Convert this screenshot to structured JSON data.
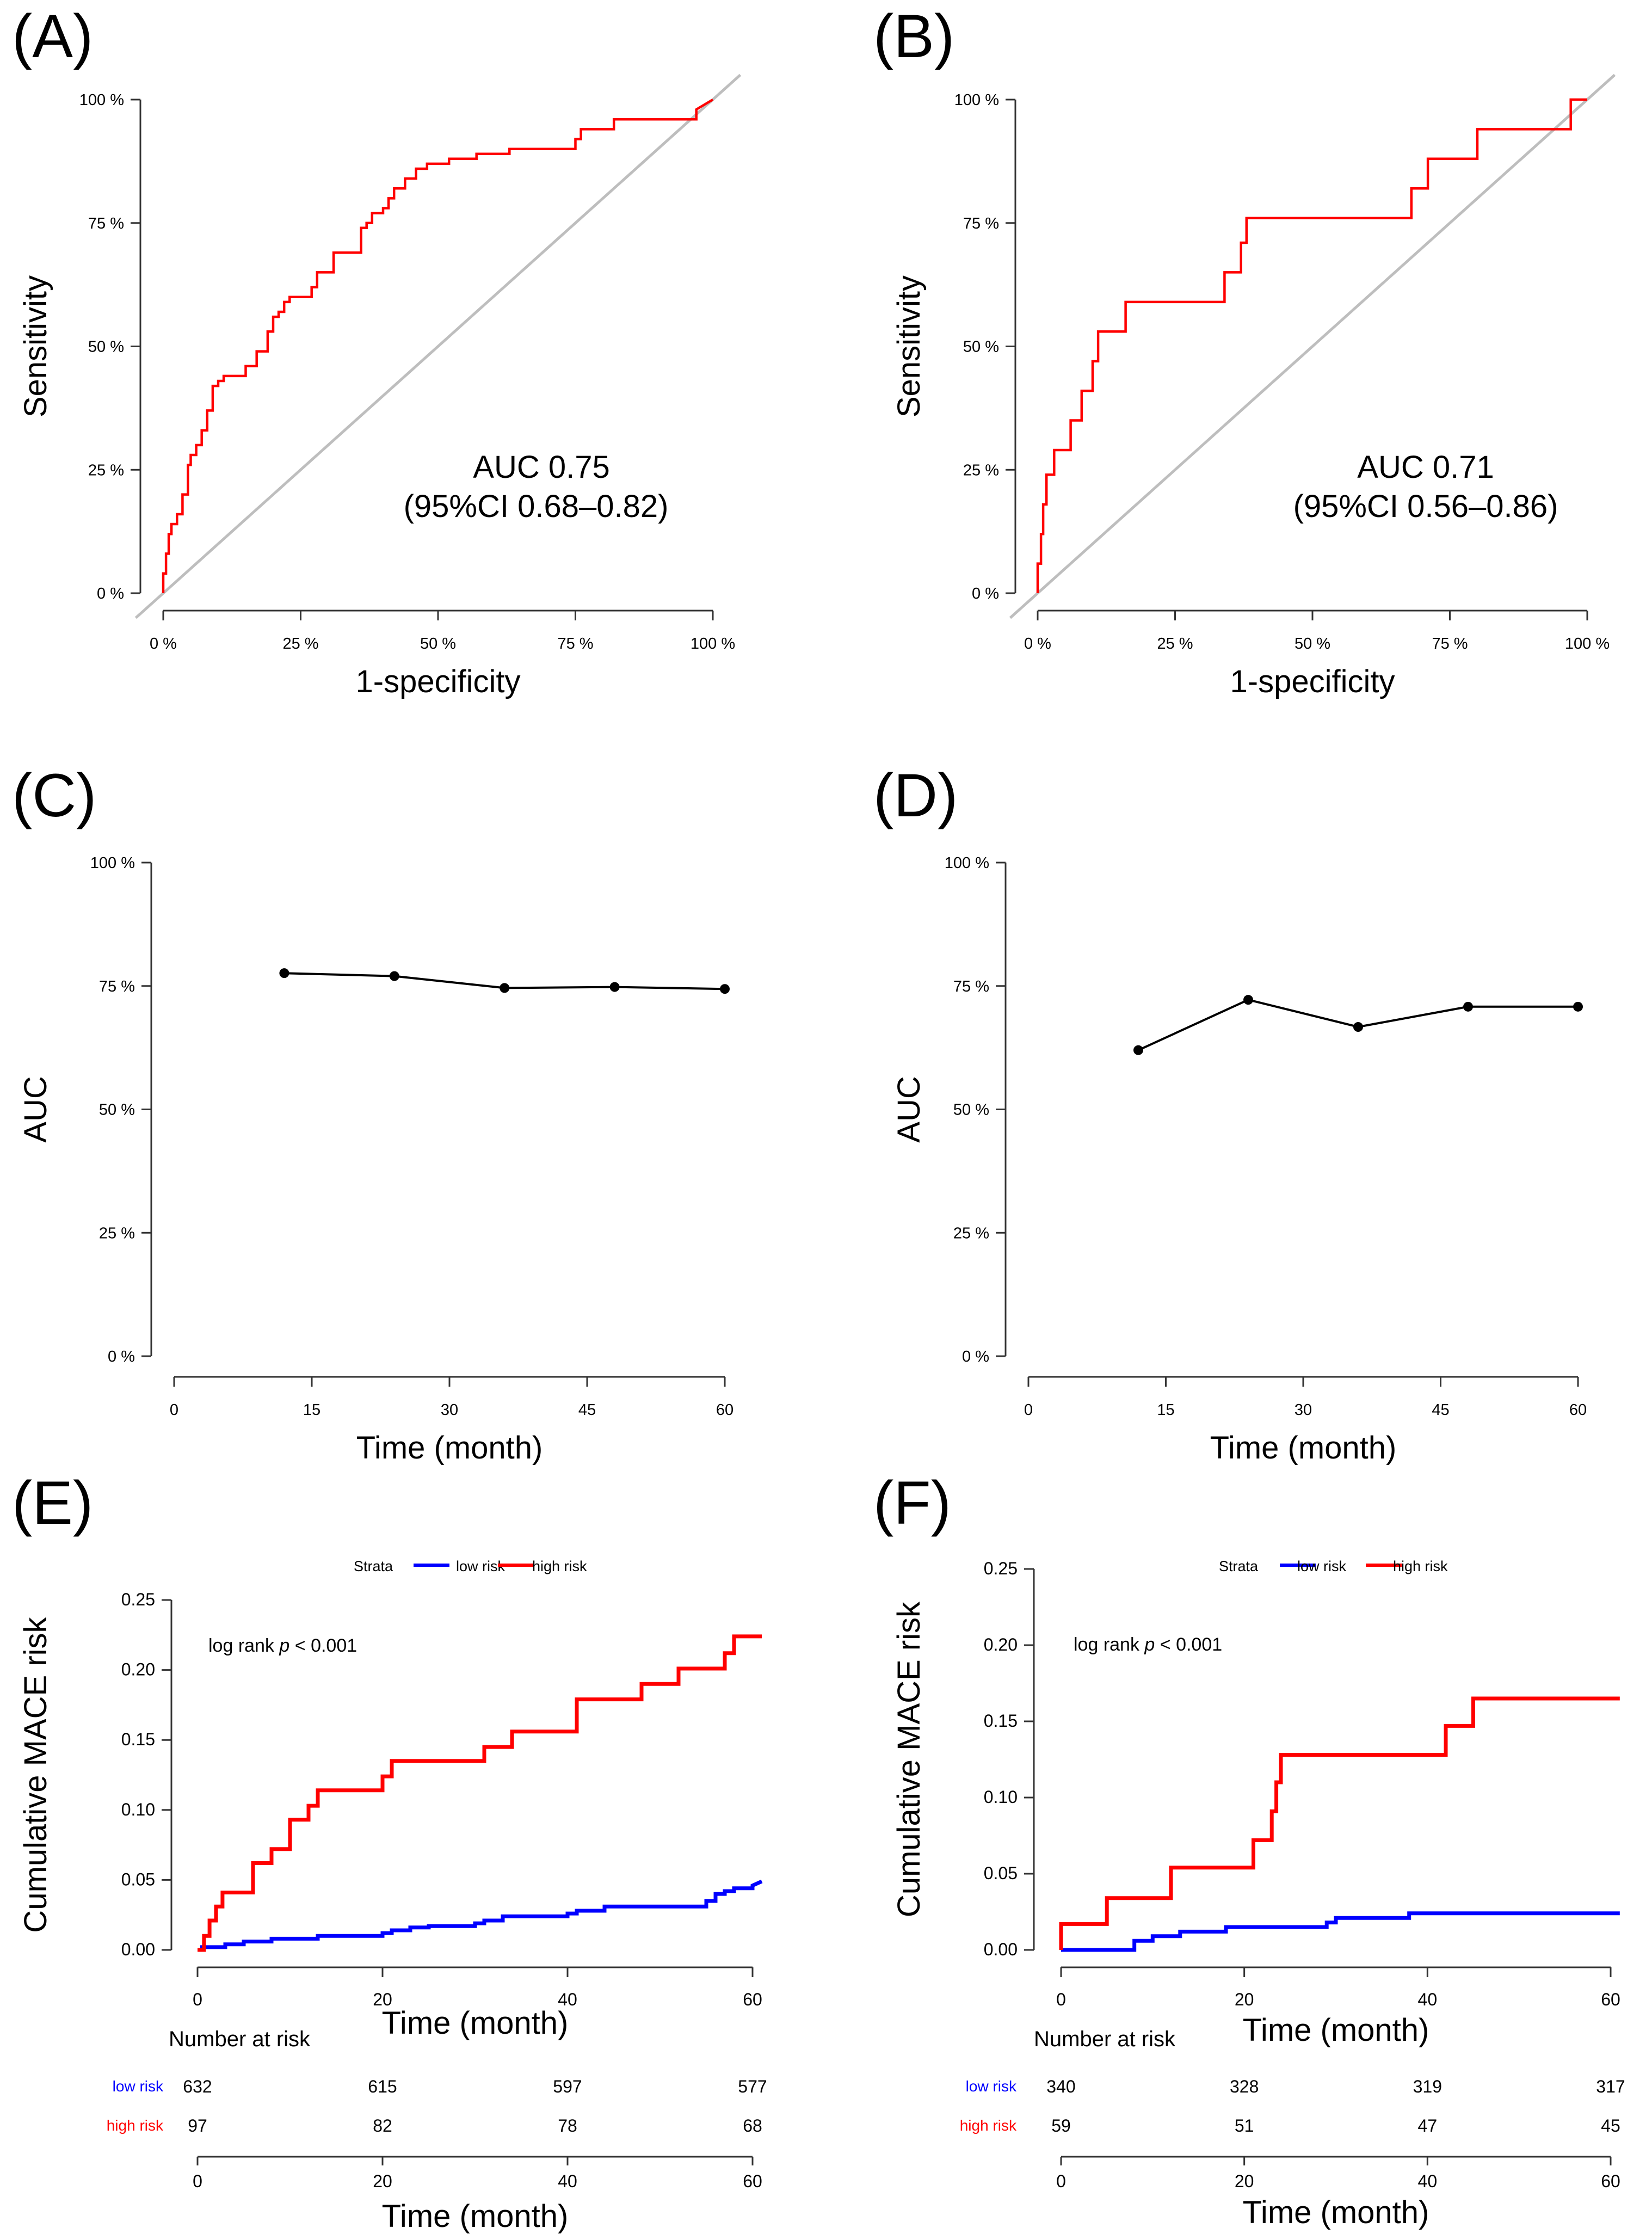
{
  "figure": {
    "panel_labels": [
      "(A)",
      "(B)",
      "(C)",
      "(D)",
      "(E)",
      "(F)"
    ]
  },
  "colors": {
    "roc": "#ff0000",
    "diag": "#bebebe",
    "axis": "#333333",
    "text": "#000000",
    "low": "#0000ff",
    "high": "#ff0000"
  },
  "chart_data": [
    {
      "panel": "(A)",
      "type": "line",
      "subtype": "roc",
      "xlabel": "1-specificity",
      "ylabel": "Sensitivity",
      "xlim": [
        0,
        100
      ],
      "ylim": [
        0,
        100
      ],
      "xticks": [
        "0 %",
        "25 %",
        "50 %",
        "75 %",
        "100 %"
      ],
      "xtick_values": [
        0,
        25,
        50,
        75,
        100
      ],
      "yticks": [
        "0 %",
        "25 %",
        "50 %",
        "75 %",
        "100 %"
      ],
      "ytick_values": [
        0,
        25,
        50,
        75,
        100
      ],
      "annotation": [
        "AUC 0.75",
        "(95%CI 0.68–0.82)"
      ],
      "series": [
        {
          "name": "ROC",
          "color": "#ff0000",
          "x": [
            0,
            0,
            0.5,
            0.5,
            1,
            1,
            1.5,
            1.5,
            2.5,
            2.5,
            3.5,
            3.5,
            4.5,
            4.5,
            5,
            5,
            6,
            6,
            7,
            7,
            8,
            8,
            9,
            9,
            10,
            10,
            11,
            11,
            15,
            15,
            17,
            17,
            19,
            19,
            20,
            20,
            21,
            21,
            22,
            22,
            23,
            23,
            27,
            27,
            28,
            28,
            31,
            31,
            36,
            36,
            37,
            37,
            38,
            38,
            40,
            40,
            41,
            41,
            42,
            42,
            44,
            44,
            46,
            46,
            48,
            48,
            52,
            52,
            57,
            57,
            63,
            63,
            75,
            75,
            76,
            76,
            82,
            82,
            97,
            97,
            100
          ],
          "y": [
            0,
            4,
            4,
            8,
            8,
            12,
            12,
            14,
            14,
            16,
            16,
            20,
            20,
            26,
            26,
            28,
            28,
            30,
            30,
            33,
            33,
            37,
            37,
            42,
            42,
            43,
            43,
            44,
            44,
            46,
            46,
            49,
            49,
            53,
            53,
            56,
            56,
            57,
            57,
            59,
            59,
            60,
            60,
            62,
            62,
            65,
            65,
            69,
            69,
            74,
            74,
            75,
            75,
            77,
            77,
            78,
            78,
            80,
            80,
            82,
            82,
            84,
            84,
            86,
            86,
            87,
            87,
            88,
            88,
            89,
            89,
            90,
            90,
            92,
            92,
            94,
            94,
            96,
            96,
            98,
            100
          ]
        }
      ]
    },
    {
      "panel": "(B)",
      "type": "line",
      "subtype": "roc",
      "xlabel": "1-specificity",
      "ylabel": "Sensitivity",
      "xlim": [
        0,
        100
      ],
      "ylim": [
        0,
        100
      ],
      "xticks": [
        "0 %",
        "25 %",
        "50 %",
        "75 %",
        "100 %"
      ],
      "xtick_values": [
        0,
        25,
        50,
        75,
        100
      ],
      "yticks": [
        "0 %",
        "25 %",
        "50 %",
        "75 %",
        "100 %"
      ],
      "ytick_values": [
        0,
        25,
        50,
        75,
        100
      ],
      "annotation": [
        "AUC 0.71",
        "(95%CI 0.56–0.86)"
      ],
      "series": [
        {
          "name": "ROC",
          "color": "#ff0000",
          "x": [
            0,
            0,
            0.6,
            0.6,
            1,
            1,
            1.6,
            1.6,
            3,
            3,
            6,
            6,
            8,
            8,
            10,
            10,
            11,
            11,
            12,
            12,
            16,
            16,
            34,
            34,
            37,
            37,
            38,
            38,
            68,
            68,
            71,
            71,
            80,
            80,
            97,
            97,
            100
          ],
          "y": [
            0,
            6,
            6,
            12,
            12,
            18,
            18,
            24,
            24,
            29,
            29,
            35,
            35,
            41,
            41,
            47,
            47,
            53,
            53,
            53,
            53,
            59,
            59,
            65,
            65,
            71,
            71,
            76,
            76,
            82,
            82,
            88,
            88,
            94,
            94,
            100,
            100
          ]
        }
      ]
    },
    {
      "panel": "(C)",
      "type": "line",
      "xlabel": "Time (month)",
      "ylabel": "AUC",
      "xlim": [
        0,
        60
      ],
      "ylim": [
        0,
        100
      ],
      "xticks": [
        "0",
        "15",
        "30",
        "45",
        "60"
      ],
      "xtick_values": [
        0,
        15,
        30,
        45,
        60
      ],
      "yticks": [
        "0 %",
        "25 %",
        "50 %",
        "75 %",
        "100 %"
      ],
      "ytick_values": [
        0,
        25,
        50,
        75,
        100
      ],
      "series": [
        {
          "name": "AUC",
          "color": "#000000",
          "x": [
            12,
            24,
            36,
            48,
            60
          ],
          "y": [
            77.6,
            77.0,
            74.6,
            74.8,
            74.4
          ]
        }
      ]
    },
    {
      "panel": "(D)",
      "type": "line",
      "xlabel": "Time (month)",
      "ylabel": "AUC",
      "xlim": [
        0,
        60
      ],
      "ylim": [
        0,
        100
      ],
      "xticks": [
        "0",
        "15",
        "30",
        "45",
        "60"
      ],
      "xtick_values": [
        0,
        15,
        30,
        45,
        60
      ],
      "yticks": [
        "0 %",
        "25 %",
        "50 %",
        "75 %",
        "100 %"
      ],
      "ytick_values": [
        0,
        25,
        50,
        75,
        100
      ],
      "series": [
        {
          "name": "AUC",
          "color": "#000000",
          "x": [
            12,
            24,
            36,
            48,
            60
          ],
          "y": [
            62.0,
            72.2,
            66.7,
            70.8,
            70.8
          ]
        }
      ]
    },
    {
      "panel": "(E)",
      "type": "line",
      "subtype": "cumulative-incidence",
      "xlabel": "Time (month)",
      "ylabel": "Cumulative MACE risk",
      "xlim": [
        0,
        60
      ],
      "ylim": [
        0,
        0.25
      ],
      "xticks": [
        "0",
        "20",
        "40",
        "60"
      ],
      "xtick_values": [
        0,
        20,
        40,
        60
      ],
      "yticks": [
        "0.00",
        "0.05",
        "0.10",
        "0.15",
        "0.20",
        "0.25"
      ],
      "ytick_values": [
        0,
        0.05,
        0.1,
        0.15,
        0.2,
        0.25
      ],
      "legend": {
        "title": "Strata",
        "entries": [
          "low risk",
          "high risk"
        ],
        "position": "top"
      },
      "annotation": {
        "prefix": "log rank ",
        "italic": "p",
        "suffix": " < 0.001"
      },
      "series": [
        {
          "name": "low risk",
          "color": "#0000ff",
          "x": [
            0,
            0.5,
            0.5,
            3,
            3,
            5,
            5,
            8,
            8,
            13,
            13,
            20,
            20,
            21,
            21,
            23,
            23,
            25,
            25,
            30,
            30,
            31,
            31,
            33,
            33,
            40,
            40,
            41,
            41,
            44,
            44,
            55,
            55,
            56,
            56,
            57,
            57,
            58,
            58,
            60,
            60,
            61
          ],
          "y": [
            0,
            0,
            0.002,
            0.002,
            0.004,
            0.004,
            0.006,
            0.006,
            0.008,
            0.008,
            0.01,
            0.01,
            0.012,
            0.012,
            0.014,
            0.014,
            0.016,
            0.016,
            0.017,
            0.017,
            0.019,
            0.019,
            0.021,
            0.021,
            0.024,
            0.024,
            0.026,
            0.026,
            0.028,
            0.028,
            0.031,
            0.031,
            0.035,
            0.035,
            0.04,
            0.04,
            0.042,
            0.042,
            0.044,
            0.044,
            0.046,
            0.049
          ]
        },
        {
          "name": "high risk",
          "color": "#ff0000",
          "x": [
            0,
            0.7,
            0.7,
            1.3,
            1.3,
            2,
            2,
            2.7,
            2.7,
            3,
            3,
            6,
            6,
            8,
            8,
            10,
            10,
            12,
            12,
            13,
            13,
            20,
            20,
            21,
            21,
            31,
            31,
            34,
            34,
            41,
            41,
            48,
            48,
            52,
            52,
            57,
            57,
            58,
            58,
            61
          ],
          "y": [
            0,
            0,
            0.01,
            0.01,
            0.021,
            0.021,
            0.031,
            0.031,
            0.041,
            0.041,
            0.041,
            0.041,
            0.062,
            0.062,
            0.072,
            0.072,
            0.093,
            0.093,
            0.103,
            0.103,
            0.114,
            0.114,
            0.124,
            0.124,
            0.135,
            0.135,
            0.145,
            0.145,
            0.156,
            0.156,
            0.179,
            0.179,
            0.19,
            0.19,
            0.201,
            0.201,
            0.212,
            0.212,
            0.224,
            0.224
          ]
        }
      ]
    },
    {
      "panel": "(F)",
      "type": "line",
      "subtype": "cumulative-incidence",
      "xlabel": "Time (month)",
      "ylabel": "Cumulative MACE risk",
      "xlim": [
        0,
        60
      ],
      "ylim": [
        0,
        0.25
      ],
      "xticks": [
        "0",
        "20",
        "40",
        "60"
      ],
      "xtick_values": [
        0,
        20,
        40,
        60
      ],
      "yticks": [
        "0.00",
        "0.05",
        "0.10",
        "0.15",
        "0.20",
        "0.25"
      ],
      "ytick_values": [
        0,
        0.05,
        0.1,
        0.15,
        0.2,
        0.25
      ],
      "legend": {
        "title": "Strata",
        "entries": [
          "low risk",
          "high risk"
        ],
        "position": "top"
      },
      "annotation": {
        "prefix": "log rank ",
        "italic": "p",
        "suffix": " < 0.001"
      },
      "series": [
        {
          "name": "low risk",
          "color": "#0000ff",
          "x": [
            0,
            8,
            8,
            10,
            10,
            13,
            13,
            18,
            18,
            29,
            29,
            30,
            30,
            38,
            38,
            61
          ],
          "y": [
            0,
            0,
            0.006,
            0.006,
            0.009,
            0.009,
            0.012,
            0.012,
            0.015,
            0.015,
            0.018,
            0.018,
            0.021,
            0.021,
            0.024,
            0.024
          ]
        },
        {
          "name": "high risk",
          "color": "#ff0000",
          "x": [
            0,
            0,
            5,
            5,
            12,
            12,
            21,
            21,
            23,
            23,
            23.5,
            23.5,
            24,
            24,
            42,
            42,
            45,
            45,
            61
          ],
          "y": [
            0,
            0.017,
            0.017,
            0.034,
            0.034,
            0.054,
            0.054,
            0.072,
            0.072,
            0.091,
            0.091,
            0.11,
            0.11,
            0.128,
            0.128,
            0.147,
            0.147,
            0.165,
            0.165
          ]
        }
      ]
    }
  ],
  "risk_tables": [
    {
      "panel": "(E)",
      "title": "Number at risk",
      "xlabel": "Time (month)",
      "xlim": [
        0,
        60
      ],
      "xticks": [
        "0",
        "20",
        "40",
        "60"
      ],
      "xtick_values": [
        0,
        20,
        40,
        60
      ],
      "times": [
        0,
        20,
        40,
        60
      ],
      "rows": [
        {
          "label": "low risk",
          "color": "#0000ff",
          "values": [
            "632",
            "615",
            "597",
            "577"
          ]
        },
        {
          "label": "high risk",
          "color": "#ff0000",
          "values": [
            "97",
            "82",
            "78",
            "68"
          ]
        }
      ]
    },
    {
      "panel": "(F)",
      "title": "Number at risk",
      "xlabel": "Time (month)",
      "xlim": [
        0,
        60
      ],
      "xticks": [
        "0",
        "20",
        "40",
        "60"
      ],
      "xtick_values": [
        0,
        20,
        40,
        60
      ],
      "times": [
        0,
        20,
        40,
        60
      ],
      "rows": [
        {
          "label": "low risk",
          "color": "#0000ff",
          "values": [
            "340",
            "328",
            "319",
            "317"
          ]
        },
        {
          "label": "high risk",
          "color": "#ff0000",
          "values": [
            "59",
            "51",
            "47",
            "45"
          ]
        }
      ]
    }
  ]
}
